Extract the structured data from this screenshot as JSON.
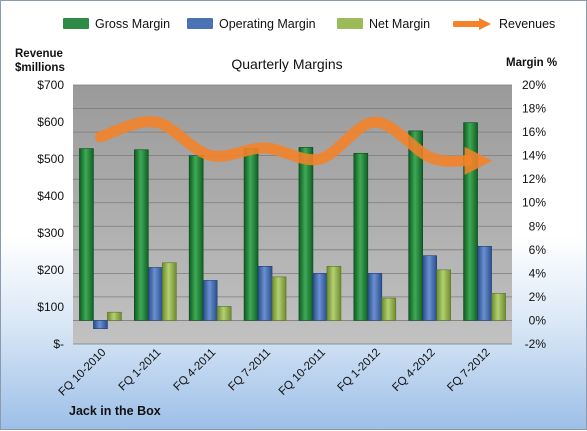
{
  "company": "Jack in the Box",
  "legend": {
    "gross": "Gross Margin",
    "operating": "Operating Margin",
    "net": "Net Margin",
    "revenues": "Revenues"
  },
  "colors": {
    "gross": "#2e8b45",
    "operating": "#4a72b5",
    "net": "#9bbb59",
    "revenues": "#f58228"
  },
  "chart_data": {
    "type": "bar",
    "title": "Quarterly Margins",
    "left_axis_label": [
      "Revenue",
      "$millions"
    ],
    "right_axis_label": "Margin %",
    "categories": [
      "FQ 10-2010",
      "FQ 1-2011",
      "FQ 4-2011",
      "FQ 7-2011",
      "FQ 10-2011",
      "FQ 1-2012",
      "FQ 4-2012",
      "FQ 7-2012"
    ],
    "left_ticks": [
      "$-",
      "$100",
      "$200",
      "$300",
      "$400",
      "$500",
      "$600",
      "$700"
    ],
    "right_ticks": [
      "-2%",
      "0%",
      "2%",
      "4%",
      "6%",
      "8%",
      "10%",
      "12%",
      "14%",
      "16%",
      "18%",
      "20%"
    ],
    "ylim_left": [
      0,
      700
    ],
    "ylim_right": [
      -2,
      20
    ],
    "series": [
      {
        "name": "Gross Margin",
        "axis": "right",
        "values": [
          14.6,
          14.5,
          14.0,
          14.6,
          14.7,
          14.2,
          16.1,
          16.8
        ]
      },
      {
        "name": "Operating Margin",
        "axis": "right",
        "values": [
          -0.7,
          4.5,
          3.4,
          4.6,
          4.0,
          4.0,
          5.5,
          6.3
        ]
      },
      {
        "name": "Net Margin",
        "axis": "right",
        "values": [
          0.7,
          4.9,
          1.2,
          3.7,
          4.6,
          1.9,
          4.3,
          2.3
        ]
      },
      {
        "name": "Revenues",
        "axis": "left",
        "type": "line",
        "values": [
          560,
          600,
          510,
          530,
          500,
          600,
          505,
          495
        ]
      }
    ],
    "grid": "horizontal",
    "legend_position": "top"
  }
}
